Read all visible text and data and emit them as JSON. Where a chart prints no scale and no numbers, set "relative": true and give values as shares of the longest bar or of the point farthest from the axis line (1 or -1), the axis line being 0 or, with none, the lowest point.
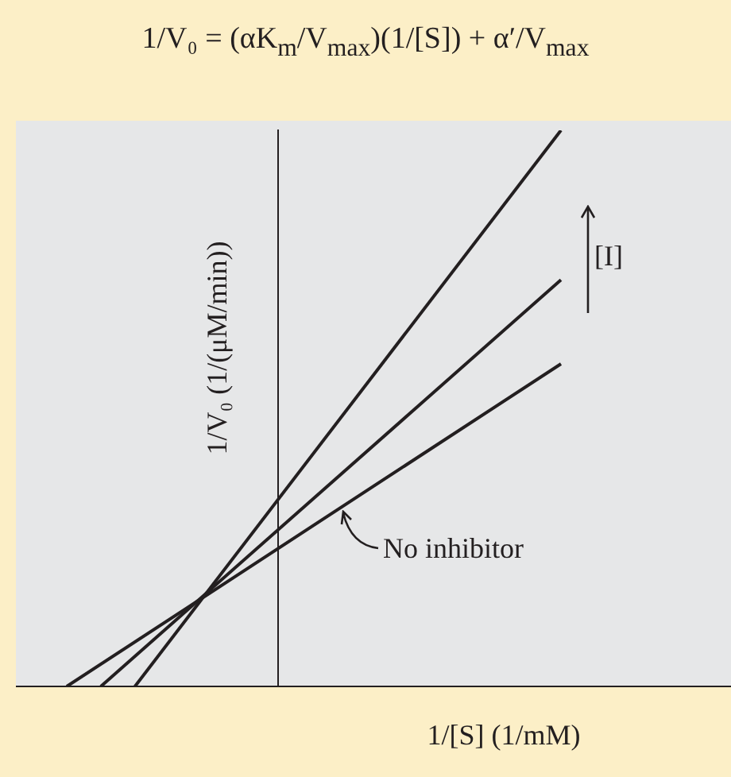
{
  "chart_data": {
    "type": "line",
    "title": "1/V₀ = (αK$_{m}$/V$_{max}$)(1/[S]) + α′/V$_{max}$",
    "xlabel": "1/[S] (1/mM)",
    "ylabel": "1/V₀ (1/(μM/min))",
    "relative": true,
    "grid": false,
    "legend": false,
    "marker": "none",
    "line_style": "solid",
    "categories": [
      null,
      null,
      null,
      null,
      null,
      null,
      null,
      null,
      null,
      null,
      null,
      null,
      null,
      null,
      null,
      null,
      null,
      null,
      null,
      null,
      null,
      null,
      null,
      null,
      null,
      null,
      null,
      null,
      null,
      null
    ],
    "series": [
      {
        "color": "#231f20",
        "values": [
          null,
          null,
          null,
          null,
          0,
          null,
          null,
          null,
          null,
          null,
          null,
          null,
          null,
          null,
          null,
          null,
          null,
          null,
          null,
          null,
          null,
          null,
          null,
          null,
          null,
          null,
          null,
          null,
          null,
          1
        ]
      },
      {
        "color": "#231f20",
        "values": [
          null,
          null,
          0,
          null,
          null,
          null,
          null,
          null,
          null,
          null,
          null,
          null,
          null,
          null,
          null,
          null,
          null,
          null,
          null,
          null,
          null,
          null,
          null,
          null,
          null,
          null,
          null,
          null,
          null,
          0.731
        ]
      },
      {
        "color": "#231f20",
        "values": [
          0,
          null,
          null,
          null,
          null,
          null,
          null,
          null,
          null,
          null,
          null,
          null,
          null,
          null,
          null,
          null,
          null,
          null,
          null,
          null,
          null,
          null,
          null,
          null,
          null,
          null,
          null,
          null,
          null,
          0.58
        ]
      }
    ],
    "annotations": [
      "[I]",
      "No inhibitor"
    ]
  }
}
